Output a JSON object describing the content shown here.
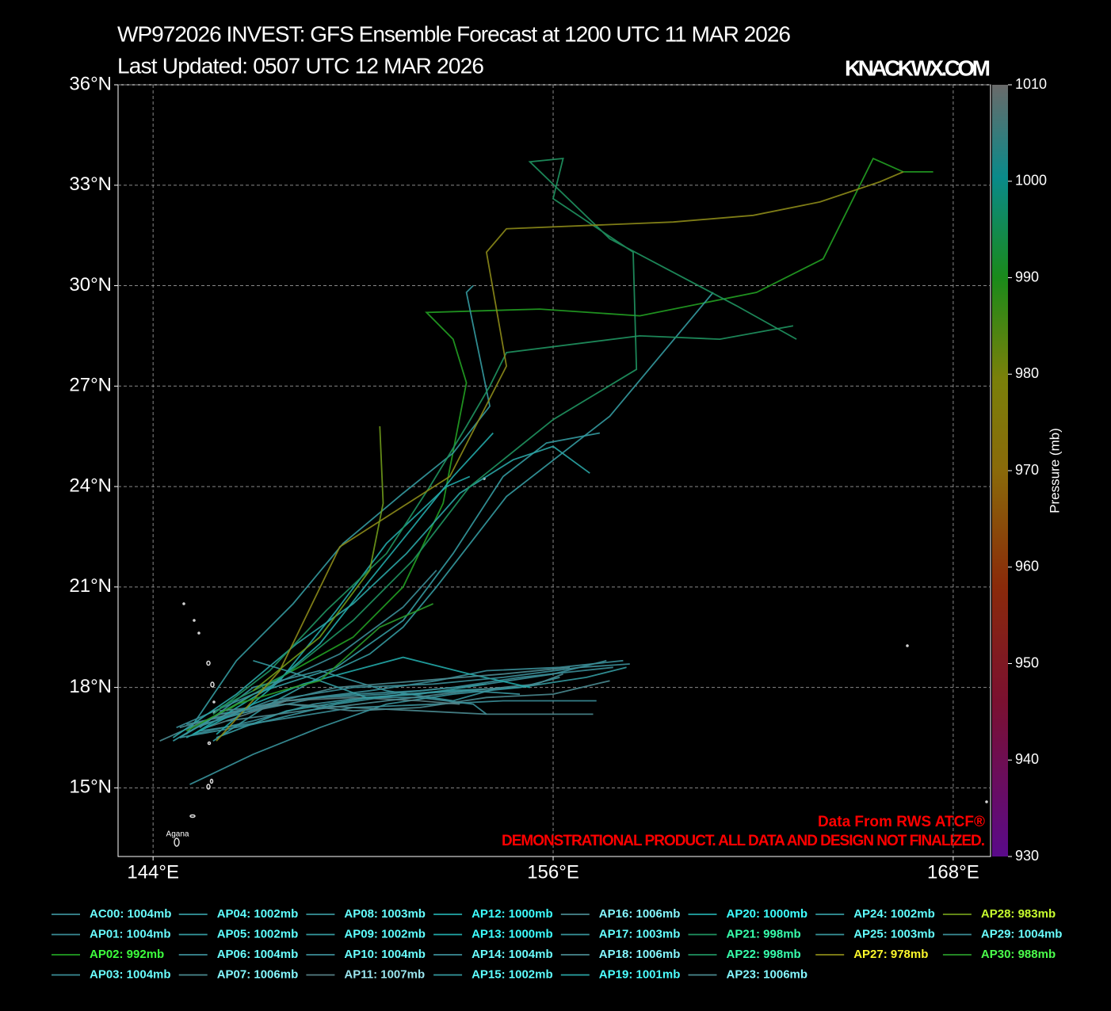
{
  "chart_data": {
    "type": "line",
    "title": "WP972026 INVEST: GFS Ensemble Forecast at 1200 UTC 11 MAR 2026",
    "subtitle": "Last Updated: 0507 UTC 12 MAR 2026",
    "source": "KNACKWX.COM",
    "annotations": [
      "Data From RWS ATCF®",
      "DEMONSTRATIONAL PRODUCT. ALL DATA AND DESIGN NOT FINALIZED."
    ],
    "map_labels": [
      "Agana"
    ],
    "grid": true,
    "xlim": [
      142.95,
      169.12
    ],
    "ylim": [
      12.95,
      36
    ],
    "xticks": [
      {
        "value": 144,
        "label": "144°E"
      },
      {
        "value": 156,
        "label": "156°E"
      },
      {
        "value": 168,
        "label": "168°E"
      }
    ],
    "yticks": [
      {
        "value": 15,
        "label": "15°N"
      },
      {
        "value": 18,
        "label": "18°N"
      },
      {
        "value": 21,
        "label": "21°N"
      },
      {
        "value": 24,
        "label": "24°N"
      },
      {
        "value": 27,
        "label": "27°N"
      },
      {
        "value": 30,
        "label": "30°N"
      },
      {
        "value": 33,
        "label": "33°N"
      },
      {
        "value": 36,
        "label": "36°N"
      }
    ],
    "colorbar": {
      "label": "Pressure (mb)",
      "lim": [
        930,
        1010
      ],
      "ticks": [
        930,
        940,
        950,
        960,
        970,
        980,
        990,
        1000,
        1010
      ]
    },
    "series": [
      {
        "name": "AC00: 1004mb",
        "color": "#3b8e98",
        "x": [
          144.8,
          146,
          148,
          150,
          152,
          154,
          156,
          157.6
        ],
        "values": [
          16.5,
          17.2,
          17.6,
          17.8,
          17.9,
          18.1,
          18.4,
          18.8
        ]
      },
      {
        "name": "AP01: 1004mb",
        "color": "#3a8c96",
        "x": [
          145,
          147,
          149,
          151,
          153,
          155,
          157.8
        ],
        "values": [
          16.9,
          17.3,
          17.7,
          17.8,
          18.0,
          18.3,
          18.6
        ]
      },
      {
        "name": "AP02: 992mb",
        "color": "#22a022",
        "x": [
          146.2,
          148,
          150,
          151.5,
          152.7,
          153.4,
          153,
          152.2,
          155.6,
          158.6,
          162.1,
          164.1,
          165.6,
          166.5,
          167.4
        ],
        "values": [
          17.3,
          18.4,
          19.5,
          21,
          23.5,
          27.1,
          28.4,
          29.2,
          29.3,
          29.1,
          29.8,
          30.8,
          33.8,
          33.4,
          33.4
        ]
      },
      {
        "name": "AP03: 1004mb",
        "color": "#3b8e98",
        "x": [
          145.4,
          147.5,
          150,
          152.5,
          154.5,
          157.3
        ],
        "values": [
          16.7,
          17.0,
          17.4,
          17.5,
          17.6,
          17.6
        ]
      },
      {
        "name": "AP04: 1002mb",
        "color": "#349aa0",
        "x": [
          144.6,
          147,
          149.5,
          151.5,
          153,
          154.5,
          155.8,
          157.4
        ],
        "values": [
          16.4,
          17.8,
          18.6,
          20,
          22,
          24.3,
          25.3,
          25.6
        ]
      },
      {
        "name": "AP05: 1002mb",
        "color": "#349aa0",
        "x": [
          145.8,
          147.5,
          149,
          150.5,
          151.5,
          152.5,
          154.6,
          157.7,
          160.8
        ],
        "values": [
          16.4,
          17.5,
          18.3,
          19,
          19.8,
          21,
          23.7,
          26.1,
          29.8
        ]
      },
      {
        "name": "AP06: 1004mb",
        "color": "#3b8e98",
        "x": [
          145.2,
          147,
          148.8,
          150.3,
          152,
          153.6,
          154
        ],
        "values": [
          16.6,
          17.0,
          17.5,
          17.7,
          17.7,
          17.5,
          17.2
        ]
      },
      {
        "name": "AP07: 1006mb",
        "color": "#4a8a90",
        "x": [
          144.2,
          146,
          148,
          150,
          152,
          154,
          156,
          157.7
        ],
        "values": [
          16.4,
          17.2,
          17.5,
          17.3,
          17.4,
          17.7,
          17.8,
          18.2
        ]
      },
      {
        "name": "AP08: 1003mb",
        "color": "#38949c",
        "x": [
          145.1,
          147,
          149,
          151,
          153,
          155,
          156.2
        ],
        "values": [
          15.1,
          16.0,
          16.8,
          17.5,
          17.8,
          18.0,
          18.3
        ]
      },
      {
        "name": "AP09: 1002mb",
        "color": "#349aa0",
        "x": [
          145,
          146.5,
          148.2,
          149.7,
          151.5,
          153,
          154.1,
          153.4,
          153.6
        ],
        "values": [
          16.6,
          18.8,
          20.5,
          22.3,
          23.8,
          25,
          26.4,
          29.8,
          30.0
        ]
      },
      {
        "name": "AP10: 1004mb",
        "color": "#3b8e98",
        "x": [
          145.5,
          148,
          150.5,
          152.5,
          154,
          156.2,
          158.1
        ],
        "values": [
          16.9,
          17.6,
          17.9,
          18.2,
          18.5,
          18.6,
          18.8
        ]
      },
      {
        "name": "AP11: 1007mb",
        "color": "#567f84",
        "x": [
          145.6,
          148,
          150,
          152,
          153.2
        ],
        "values": [
          16.8,
          17.6,
          17.7,
          17.6,
          17.5
        ]
      },
      {
        "name": "AP12: 1000mb",
        "color": "#22a8a8",
        "x": [
          145.2,
          147.5,
          149,
          150.5,
          151.8,
          153,
          154.2
        ],
        "values": [
          16.6,
          18,
          19.3,
          21.2,
          22.8,
          24.3,
          25.6
        ]
      },
      {
        "name": "AP13: 1000mb",
        "color": "#22a8a8",
        "x": [
          145.9,
          147.8,
          149.5,
          151,
          152.8,
          153.5
        ],
        "values": [
          16.6,
          18.2,
          20.3,
          22.3,
          24.0,
          24.3
        ]
      },
      {
        "name": "AP14: 1004mb",
        "color": "#3b8e98",
        "x": [
          144.7,
          147,
          149.6,
          151.5,
          152.5
        ],
        "values": [
          16.8,
          17.8,
          19,
          20.4,
          21.5
        ]
      },
      {
        "name": "AP15: 1002mb",
        "color": "#349aa0",
        "x": [
          145.9,
          148,
          150.5,
          152.8,
          155,
          157,
          158.2
        ],
        "values": [
          16.5,
          17.3,
          17.7,
          17.9,
          18,
          18.3,
          18.6
        ]
      },
      {
        "name": "AP16: 1006mb",
        "color": "#4a8a90",
        "x": [
          146,
          148,
          150,
          152,
          154,
          155.9,
          157.2
        ],
        "values": [
          17.3,
          17.5,
          17.4,
          17.3,
          17.2,
          17.2,
          17.2
        ]
      },
      {
        "name": "AP17: 1003mb",
        "color": "#38949c",
        "x": [
          145.4,
          147,
          149,
          151,
          153,
          154.4
        ],
        "values": [
          16.8,
          18,
          18.5,
          17.9,
          17.6,
          18
        ]
      },
      {
        "name": "AP18: 1006mb",
        "color": "#4a8a90",
        "x": [
          146.2,
          148.5,
          151,
          153.5,
          155.5,
          156.3
        ],
        "values": [
          17.0,
          17.3,
          17.6,
          17.9,
          18.1,
          18.4
        ]
      },
      {
        "name": "AP19: 1001mb",
        "color": "#2aa5a5",
        "x": [
          144.6,
          146.5,
          148.3,
          150,
          151.6,
          153.2,
          154.8,
          156,
          157.1
        ],
        "values": [
          16.5,
          17.8,
          19.3,
          20.5,
          22,
          23.8,
          24.8,
          25.2,
          24.4
        ]
      },
      {
        "name": "AP20: 1000mb",
        "color": "#22a8a8",
        "x": [
          145,
          147,
          148.5,
          150,
          151.5,
          153.5,
          155.3
        ],
        "values": [
          16.5,
          17.5,
          18.1,
          18.5,
          18.9,
          18.4,
          18.0
        ]
      },
      {
        "name": "AP21: 998mb",
        "color": "#1f9360",
        "x": [
          146,
          148,
          150,
          151.8,
          153.5,
          156,
          158.5,
          158.4,
          156,
          156.3,
          155.3,
          157.7,
          161.5,
          163.3
        ],
        "values": [
          17.4,
          18.4,
          20,
          21.8,
          24.0,
          26,
          27.5,
          31.0,
          32.6,
          33.8,
          33.7,
          31.4,
          29.4,
          28.4
        ]
      },
      {
        "name": "AP22: 998mb",
        "color": "#1f9360",
        "x": [
          145.8,
          147.5,
          149.2,
          151,
          152.3,
          153.4,
          154.1,
          154.6,
          158.6,
          161,
          163.2
        ],
        "values": [
          17.2,
          18.5,
          20.3,
          22.0,
          24.0,
          25.8,
          27,
          28.0,
          28.5,
          28.4,
          28.8
        ]
      },
      {
        "name": "AP23: 1006mb",
        "color": "#4a8a90",
        "x": [
          144.8,
          147,
          149.5,
          152,
          154.5,
          156.5
        ],
        "values": [
          16.8,
          17.4,
          18,
          18.2,
          18.4,
          18.6
        ]
      },
      {
        "name": "AP24: 1002mb",
        "color": "#349aa0",
        "x": [
          147,
          149,
          150.4,
          152,
          154
        ],
        "values": [
          18.8,
          18.2,
          17.7,
          17.8,
          18.1
        ]
      },
      {
        "name": "AP25: 1003mb",
        "color": "#38949c",
        "x": [
          144.8,
          147,
          149.5,
          151.5,
          153.5,
          155
        ],
        "values": [
          16.5,
          16.9,
          17.5,
          17.8,
          17.9,
          17.8
        ]
      },
      {
        "name": "AP27: 978mb",
        "color": "#8c8a18",
        "x": [
          145.9,
          147.8,
          149.6,
          152.9,
          154.6,
          154,
          154.6,
          159.6,
          162,
          164,
          165.8,
          166.5
        ],
        "values": [
          16.4,
          18.5,
          22.2,
          24.3,
          27.6,
          31,
          31.7,
          31.9,
          32.1,
          32.5,
          33.1,
          33.4
        ]
      },
      {
        "name": "AP28: 983mb",
        "color": "#6f9a1a",
        "x": [
          147,
          149,
          150.5,
          150.9,
          150.8
        ],
        "values": [
          17.9,
          19.5,
          21.5,
          23.5,
          25.8
        ]
      },
      {
        "name": "AP29: 1004mb",
        "color": "#3b8e98",
        "x": [
          145.3,
          147.5,
          150,
          152.4,
          154.5,
          156.8,
          158.3
        ],
        "values": [
          16.8,
          17.6,
          18.0,
          18.1,
          18.3,
          18.6,
          18.7
        ]
      },
      {
        "name": "AP30: 988mb",
        "color": "#2a9a2a",
        "x": [
          145,
          146.5,
          148.2,
          149,
          150.8,
          152.4
        ],
        "values": [
          16.7,
          17.5,
          18,
          18.2,
          19.8,
          20.5
        ]
      }
    ]
  }
}
